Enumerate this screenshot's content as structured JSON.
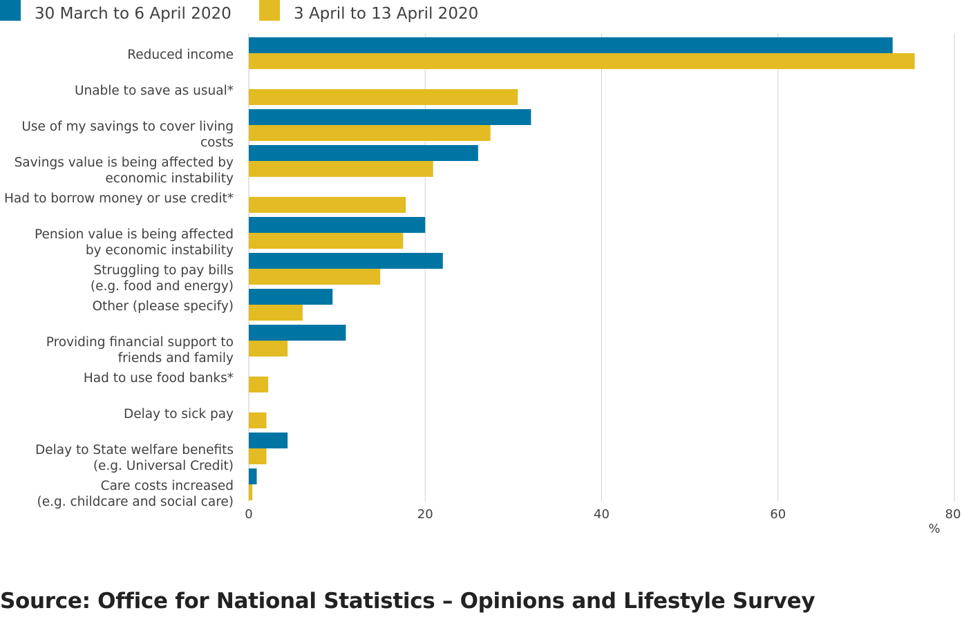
{
  "chart_data": {
    "type": "bar",
    "orientation": "horizontal",
    "categories": [
      [
        "Reduced income"
      ],
      [
        "Unable to save as usual*"
      ],
      [
        "Use of my savings to cover living",
        "costs"
      ],
      [
        "Savings value is being affected by",
        "economic instability"
      ],
      [
        "Had to borrow money or use credit*"
      ],
      [
        "Pension value is being affected",
        "by economic instability"
      ],
      [
        "Struggling to pay bills",
        "(e.g. food and energy)"
      ],
      [
        "Other (please specify)"
      ],
      [
        "Providing financial support to",
        "friends and family"
      ],
      [
        "Had to use food banks*"
      ],
      [
        "Delay to sick pay"
      ],
      [
        "Delay to State welfare benefits",
        "(e.g. Universal Credit)"
      ],
      [
        "Care costs increased",
        "(e.g. childcare and social care)"
      ]
    ],
    "series": [
      {
        "name": "30 March to 6 April 2020",
        "color": "#0075a3",
        "values": [
          73,
          null,
          32,
          26,
          null,
          20,
          22,
          9.5,
          11,
          null,
          null,
          4.4,
          0.9
        ]
      },
      {
        "name": "3 April to 13 April 2020",
        "color": "#e2bc22",
        "values": [
          75.5,
          30.5,
          27.4,
          20.9,
          17.8,
          17.5,
          14.9,
          6.1,
          4.4,
          2.2,
          2.0,
          2.0,
          0.4
        ]
      }
    ],
    "xlabel": "%",
    "xlim": [
      0,
      80
    ],
    "xticks": [
      0,
      20,
      40,
      60,
      80
    ],
    "grid": true,
    "legend_position": "top-left"
  },
  "source": "Source: Office for National Statistics – Opinions and Lifestyle Survey"
}
